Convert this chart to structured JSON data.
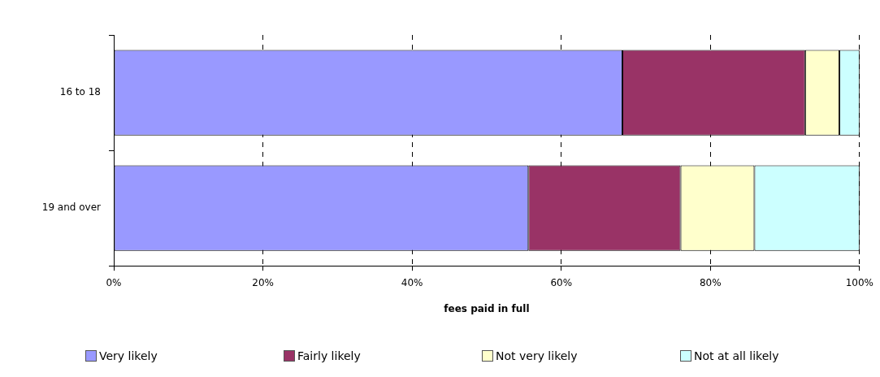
{
  "chart_data": {
    "type": "bar",
    "orientation": "horizontal",
    "stacked": true,
    "xlabel": "fees paid in full",
    "categories": [
      "16 to 18",
      "19 and over"
    ],
    "series": [
      {
        "name": "Very likely",
        "color": "#9999ff",
        "values": [
          68.2,
          55.6
        ]
      },
      {
        "name": "Fairly likely",
        "color": "#993366",
        "values": [
          24.5,
          20.4
        ]
      },
      {
        "name": "Not very likely",
        "color": "#ffffcc",
        "values": [
          4.6,
          9.9
        ]
      },
      {
        "name": "Not at all likely",
        "color": "#ccffff",
        "values": [
          2.7,
          14.1
        ]
      }
    ],
    "xlim": [
      0,
      100
    ],
    "xticks": [
      {
        "value": 0,
        "label": "0%"
      },
      {
        "value": 20,
        "label": "20%"
      },
      {
        "value": 40,
        "label": "40%"
      },
      {
        "value": 60,
        "label": "60%"
      },
      {
        "value": 80,
        "label": "80%"
      },
      {
        "value": 100,
        "label": "100%"
      }
    ],
    "grid": "x",
    "legend": "bottom"
  }
}
